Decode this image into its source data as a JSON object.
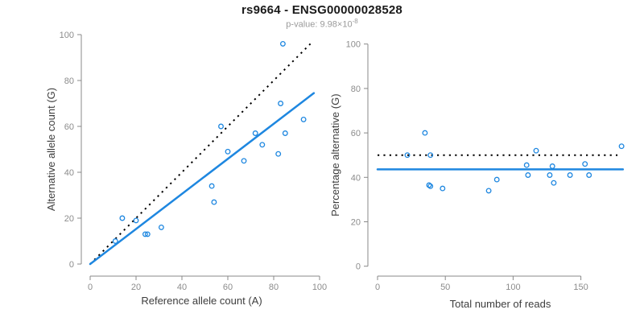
{
  "header": {
    "title": "rs9664 - ENSG00000028528",
    "subtitle_base": "p-value: 9.98×10",
    "subtitle_exp": "-8"
  },
  "colors": {
    "accent_blue": "#1e87e0",
    "dotted_black": "#000000",
    "axis_gray": "#888888",
    "tick_label_gray": "#8c8c8c",
    "axis_title_color": "#3d3d3d",
    "title_color": "#1a1a1a",
    "subtitle_color": "#9a9a9a"
  },
  "chart_data": [
    {
      "type": "scatter",
      "panel": "counts",
      "xlabel": "Reference allele count (A)",
      "ylabel": "Alternative allele count (G)",
      "xlim": [
        0,
        100
      ],
      "ylim": [
        0,
        100
      ],
      "xticks": [
        0,
        20,
        40,
        60,
        80,
        100
      ],
      "yticks": [
        0,
        20,
        40,
        60,
        80,
        100
      ],
      "grid": false,
      "points": [
        [
          84,
          96
        ],
        [
          83,
          70
        ],
        [
          93,
          63
        ],
        [
          57,
          60
        ],
        [
          72,
          57
        ],
        [
          85,
          57
        ],
        [
          75,
          52
        ],
        [
          60,
          49
        ],
        [
          82,
          48
        ],
        [
          67,
          45
        ],
        [
          53,
          34
        ],
        [
          54,
          27
        ],
        [
          14,
          20
        ],
        [
          20,
          19
        ],
        [
          31,
          16
        ],
        [
          24,
          13
        ],
        [
          25,
          13
        ],
        [
          11,
          10
        ]
      ],
      "lines": [
        {
          "name": "identity-line",
          "style": "dotted",
          "color": "black",
          "from": [
            0,
            0
          ],
          "to": [
            96,
            96
          ]
        },
        {
          "name": "fit-line",
          "style": "solid",
          "color": "blue",
          "from": [
            0,
            0
          ],
          "to": [
            97.5,
            74.5
          ]
        }
      ]
    },
    {
      "type": "scatter",
      "panel": "percentage",
      "xlabel": "Total number of reads",
      "ylabel": "Percentage alternative (G)",
      "xlim": [
        0,
        181
      ],
      "ylim": [
        0,
        100
      ],
      "xticks": [
        0,
        50,
        100,
        150
      ],
      "yticks": [
        0,
        20,
        40,
        60,
        80,
        100
      ],
      "grid": false,
      "points": [
        [
          35,
          60
        ],
        [
          22,
          50
        ],
        [
          39,
          50
        ],
        [
          38,
          36.5
        ],
        [
          39,
          36
        ],
        [
          48,
          35
        ],
        [
          82,
          34
        ],
        [
          88,
          39
        ],
        [
          110,
          45.5
        ],
        [
          117,
          52
        ],
        [
          111,
          41
        ],
        [
          127,
          41
        ],
        [
          129,
          45
        ],
        [
          130,
          37.5
        ],
        [
          142,
          41
        ],
        [
          153,
          46
        ],
        [
          156,
          41
        ],
        [
          180,
          54
        ]
      ],
      "lines": [
        {
          "name": "expected-50pct-line",
          "style": "dotted",
          "color": "black",
          "from": [
            0,
            50
          ],
          "to": [
            177,
            50
          ]
        },
        {
          "name": "mean-percentage-line",
          "style": "solid",
          "color": "blue",
          "from": [
            0,
            43.6
          ],
          "to": [
            181,
            43.6
          ]
        }
      ]
    }
  ]
}
